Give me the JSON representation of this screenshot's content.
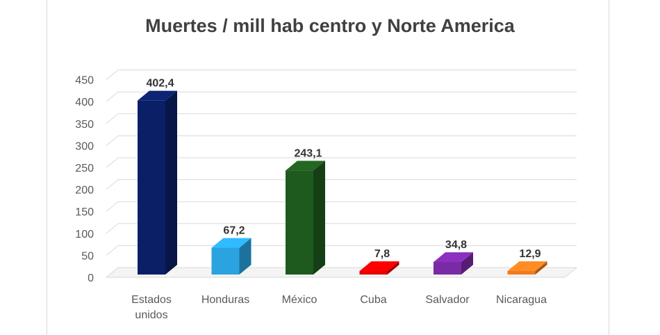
{
  "chart_data": {
    "type": "bar",
    "title": "Muertes / mill hab centro y Norte America",
    "categories": [
      "Estados unidos",
      "Honduras",
      "México",
      "Cuba",
      "Salvador",
      "Nicaragua"
    ],
    "category_lines": [
      [
        "Estados",
        "unidos"
      ],
      [
        "Honduras"
      ],
      [
        "México"
      ],
      [
        "Cuba"
      ],
      [
        "Salvador"
      ],
      [
        "Nicaragua"
      ]
    ],
    "values": [
      402.4,
      67.2,
      243.1,
      7.8,
      34.8,
      12.9
    ],
    "value_labels": [
      "402,4",
      "67,2",
      "243,1",
      "7,8",
      "34,8",
      "12,9"
    ],
    "colors": [
      "#0b1f66",
      "#2aa3e0",
      "#1e5a1e",
      "#e60000",
      "#7b2aa6",
      "#f07b1e"
    ],
    "yticks": [
      0,
      50,
      100,
      150,
      200,
      250,
      300,
      350,
      400,
      450
    ],
    "ylim": [
      0,
      450
    ],
    "xlabel": "",
    "ylabel": "",
    "grid": true,
    "style": "3d-column"
  }
}
